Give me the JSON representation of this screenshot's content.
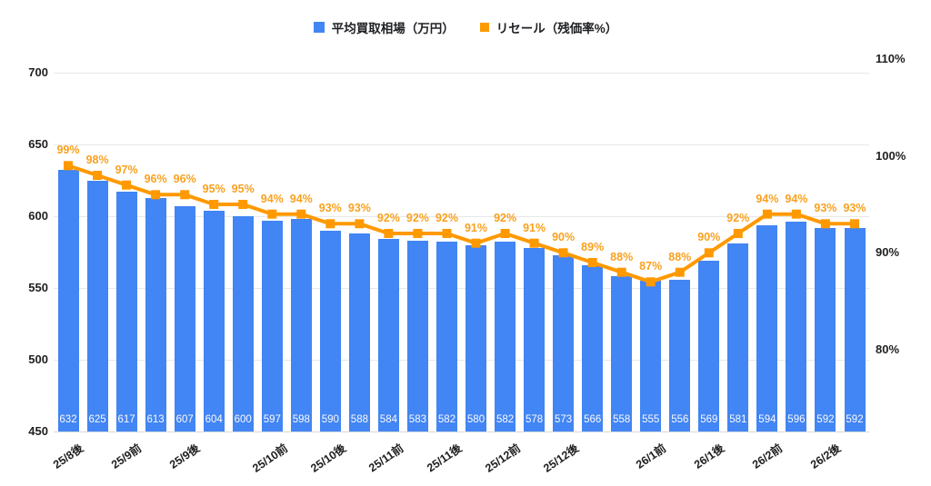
{
  "legend": {
    "bar_series_label": "平均買取相場（万円）",
    "line_series_label": "リセール（残価率%）"
  },
  "colors": {
    "bar": "#4285F4",
    "line": "#FF9900",
    "percent_label": "#F9A11F",
    "grid": "#E8E8E8",
    "baseline": "#D9D9D9",
    "axis_text": "#1F1F1F",
    "bar_value_text": "#FAFAFA",
    "background": "#FFFFFF"
  },
  "chart_data": {
    "type": "combo (bar + line)",
    "title": "",
    "legend_position": "top",
    "grid": "horizontal only",
    "left_axis": {
      "ticks": [
        700,
        650,
        600,
        550,
        500,
        450
      ],
      "range": [
        450,
        700
      ]
    },
    "right_axis": {
      "tick_labels": [
        "110%",
        "100%",
        "90%",
        "80%"
      ],
      "range_pct": [
        80,
        110
      ]
    },
    "x_ticks": [
      {
        "index": 0,
        "label": "25/8後"
      },
      {
        "index": 2,
        "label": "25/9前"
      },
      {
        "index": 4,
        "label": "25/9後"
      },
      {
        "index": 7,
        "label": "25/10前"
      },
      {
        "index": 9,
        "label": "25/10後"
      },
      {
        "index": 11,
        "label": "25/11前"
      },
      {
        "index": 13,
        "label": "25/11後"
      },
      {
        "index": 15,
        "label": "25/12前"
      },
      {
        "index": 17,
        "label": "25/12後"
      },
      {
        "index": 20,
        "label": "26/1前"
      },
      {
        "index": 22,
        "label": "26/1後"
      },
      {
        "index": 24,
        "label": "26/2前"
      },
      {
        "index": 26,
        "label": "26/2後"
      }
    ],
    "series": [
      {
        "name": "平均買取相場（万円）",
        "type": "bar",
        "axis": "left",
        "values": [
          632,
          625,
          617,
          613,
          607,
          604,
          600,
          597,
          598,
          590,
          588,
          584,
          583,
          582,
          580,
          582,
          578,
          573,
          566,
          558,
          555,
          556,
          569,
          581,
          594,
          596,
          592,
          592
        ],
        "labels": [
          "632",
          "625",
          "617",
          "613",
          "607",
          "604",
          "600",
          "597",
          "598",
          "590",
          "588",
          "584",
          "583",
          "582",
          "580",
          "582",
          "578",
          "573",
          "566",
          "558",
          "555",
          "556",
          "569",
          "581",
          "594",
          "596",
          "592",
          "592"
        ]
      },
      {
        "name": "リセール（残価率%）",
        "type": "line",
        "axis": "right",
        "values": [
          99,
          98,
          97,
          96,
          96,
          95,
          95,
          94,
          94,
          93,
          93,
          92,
          92,
          92,
          91,
          92,
          91,
          90,
          89,
          88,
          87,
          88,
          90,
          92,
          94,
          94,
          93,
          93
        ],
        "labels": [
          "99%",
          "98%",
          "97%",
          "96%",
          "96%",
          "95%",
          "95%",
          "94%",
          "94%",
          "93%",
          "93%",
          "92%",
          "92%",
          "92%",
          "91%",
          "92%",
          "91%",
          "90%",
          "89%",
          "88%",
          "87%",
          "88%",
          "90%",
          "92%",
          "94%",
          "94%",
          "93%",
          "93%"
        ]
      }
    ]
  }
}
